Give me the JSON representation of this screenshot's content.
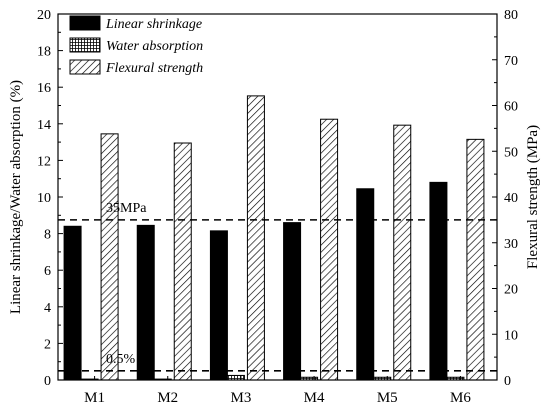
{
  "chart_data": {
    "type": "bar",
    "categories": [
      "M1",
      "M2",
      "M3",
      "M4",
      "M5",
      "M6"
    ],
    "series": [
      {
        "name": "Linear shrinkage",
        "axis": "left",
        "pattern": "solid",
        "values": [
          8.4,
          8.45,
          8.15,
          8.6,
          10.45,
          10.8
        ]
      },
      {
        "name": "Water absorption",
        "axis": "left",
        "pattern": "crosshatch",
        "values": [
          0.05,
          0.05,
          0.25,
          0.15,
          0.15,
          0.15
        ]
      },
      {
        "name": "Flexural strength",
        "axis": "right",
        "pattern": "diagonal",
        "values": [
          53.8,
          51.8,
          62.1,
          57.0,
          55.7,
          52.6
        ]
      }
    ],
    "ylabel": "Linear shrinkage/Water absorption (%)",
    "y2label": "Flexural strength (MPa)",
    "ylim": [
      0,
      20
    ],
    "y2lim": [
      0,
      80
    ],
    "yticks": [
      "0",
      "2",
      "4",
      "6",
      "8",
      "10",
      "12",
      "14",
      "16",
      "18",
      "20"
    ],
    "y2ticks": [
      "0",
      "10",
      "20",
      "30",
      "40",
      "50",
      "60",
      "70",
      "80"
    ],
    "reference_lines": [
      {
        "label": "35MPa",
        "axis": "right",
        "value": 35
      },
      {
        "label": "0.5%",
        "axis": "left",
        "value": 0.5
      }
    ],
    "legend_position": "top-left",
    "grid": false
  }
}
